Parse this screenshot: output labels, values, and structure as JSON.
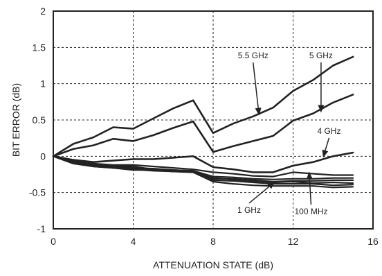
{
  "chart_data": {
    "type": "line",
    "title": "",
    "xlabel": "ATTENUATION STATE (dB)",
    "ylabel": "BIT ERROR (dB)",
    "xlim": [
      0,
      16
    ],
    "ylim": [
      -1,
      2
    ],
    "x_ticks": [
      "0",
      "4",
      "8",
      "12",
      "16"
    ],
    "y_ticks": [
      "2",
      "1.5",
      "1",
      "0.5",
      "0",
      "-0.5",
      "-1"
    ],
    "grid": true,
    "legend": "none",
    "x": [
      0,
      1,
      2,
      3,
      4,
      5,
      6,
      7,
      8,
      9,
      10,
      11,
      12,
      13,
      14,
      15
    ],
    "series": [
      {
        "name": "5.5 GHz",
        "values": [
          0,
          0.17,
          0.26,
          0.4,
          0.38,
          0.52,
          0.66,
          0.77,
          0.32,
          0.45,
          0.55,
          0.67,
          0.9,
          1.05,
          1.25,
          1.37
        ]
      },
      {
        "name": "5 GHz",
        "values": [
          0,
          0.1,
          0.15,
          0.24,
          0.21,
          0.29,
          0.39,
          0.48,
          0.06,
          0.14,
          0.21,
          0.28,
          0.49,
          0.59,
          0.74,
          0.85
        ]
      },
      {
        "name": "4 GHz",
        "values": [
          0,
          -0.05,
          -0.08,
          -0.06,
          -0.04,
          -0.04,
          -0.02,
          0.0,
          -0.15,
          -0.18,
          -0.22,
          -0.22,
          -0.13,
          -0.08,
          0.0,
          0.05
        ]
      },
      {
        "name": "",
        "values": [
          0,
          -0.07,
          -0.1,
          -0.12,
          -0.12,
          -0.14,
          -0.16,
          -0.18,
          -0.22,
          -0.24,
          -0.27,
          -0.28,
          -0.22,
          -0.24,
          -0.26,
          -0.26
        ]
      },
      {
        "name": "",
        "values": [
          0,
          -0.08,
          -0.12,
          -0.14,
          -0.16,
          -0.17,
          -0.19,
          -0.2,
          -0.28,
          -0.29,
          -0.31,
          -0.32,
          -0.31,
          -0.31,
          -0.3,
          -0.3
        ]
      },
      {
        "name": "",
        "values": [
          0,
          -0.09,
          -0.13,
          -0.16,
          -0.19,
          -0.19,
          -0.21,
          -0.21,
          -0.31,
          -0.31,
          -0.33,
          -0.35,
          -0.34,
          -0.34,
          -0.33,
          -0.33
        ]
      },
      {
        "name": "",
        "values": [
          0,
          -0.1,
          -0.14,
          -0.16,
          -0.17,
          -0.19,
          -0.21,
          -0.22,
          -0.3,
          -0.32,
          -0.34,
          -0.36,
          -0.35,
          -0.37,
          -0.36,
          -0.37
        ]
      },
      {
        "name": "1 GHz",
        "values": [
          0,
          -0.09,
          -0.12,
          -0.14,
          -0.14,
          -0.18,
          -0.19,
          -0.2,
          -0.33,
          -0.34,
          -0.36,
          -0.38,
          -0.38,
          -0.38,
          -0.4,
          -0.39
        ]
      },
      {
        "name": "100 MHz",
        "values": [
          0,
          -0.1,
          -0.14,
          -0.16,
          -0.18,
          -0.2,
          -0.21,
          -0.22,
          -0.35,
          -0.38,
          -0.4,
          -0.41,
          -0.41,
          -0.41,
          -0.43,
          -0.42
        ]
      }
    ],
    "annotations": [
      {
        "text": "5.5 GHz",
        "x": 10.0,
        "y": 1.35,
        "arrow_to": [
          10.3,
          0.56
        ]
      },
      {
        "text": "5 GHz",
        "x": 13.4,
        "y": 1.35,
        "arrow_to": [
          13.4,
          0.6
        ]
      },
      {
        "text": "4 GHz",
        "x": 13.8,
        "y": 0.31,
        "arrow_to": [
          13.5,
          -0.02
        ]
      },
      {
        "text": "1 GHz",
        "x": 9.8,
        "y": -0.78,
        "arrow_to": [
          11.1,
          -0.35
        ]
      },
      {
        "text": "100 MHz",
        "x": 12.9,
        "y": -0.8,
        "arrow_to": [
          12.8,
          -0.21
        ]
      }
    ]
  }
}
